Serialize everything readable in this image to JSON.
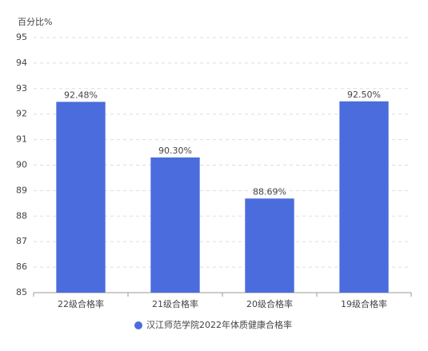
{
  "chart_data": {
    "type": "bar",
    "y_label": "百分比%",
    "categories": [
      "22级合格率",
      "21级合格率",
      "20级合格率",
      "19级合格率"
    ],
    "series": [
      {
        "name": "汉江师范学院2022年体质健康合格率",
        "color": "#4a6cdc",
        "values": [
          92.48,
          90.3,
          88.69,
          92.5
        ],
        "value_labels": [
          "92.48%",
          "90.30%",
          "88.69%",
          "92.50%"
        ]
      }
    ],
    "ylim": [
      85,
      95
    ],
    "yticks": [
      85,
      86,
      87,
      88,
      89,
      90,
      91,
      92,
      93,
      94,
      95
    ],
    "grid": true
  }
}
